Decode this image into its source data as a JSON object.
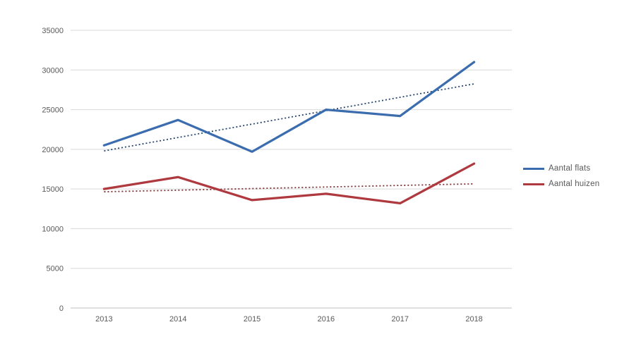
{
  "chart_data": {
    "type": "line",
    "title": "",
    "xlabel": "",
    "ylabel": "",
    "categories": [
      "2013",
      "2014",
      "2015",
      "2016",
      "2017",
      "2018"
    ],
    "series": [
      {
        "name": "Aantal flats",
        "color": "#3B6DAE",
        "values": [
          20500,
          23700,
          19700,
          25000,
          24200,
          31000
        ],
        "trendline": {
          "style": "dotted",
          "color": "#26456E",
          "start": 19800,
          "end": 28250
        }
      },
      {
        "name": "Aantal huizen",
        "color": "#AE3A40",
        "values": [
          15000,
          16500,
          13600,
          14400,
          13200,
          18200
        ],
        "trendline": {
          "style": "dotted",
          "color": "#7E3034",
          "start": 14650,
          "end": 15650
        }
      }
    ],
    "ylim": [
      0,
      35000
    ],
    "ytick_step": 5000,
    "yticks": [
      "0",
      "5000",
      "10000",
      "15000",
      "20000",
      "25000",
      "30000",
      "35000"
    ],
    "grid": true,
    "legend_position": "right",
    "colors": {
      "gridline": "#D9D9D9",
      "axis_line": "#BFBFBF",
      "tick_label": "#595959"
    }
  }
}
